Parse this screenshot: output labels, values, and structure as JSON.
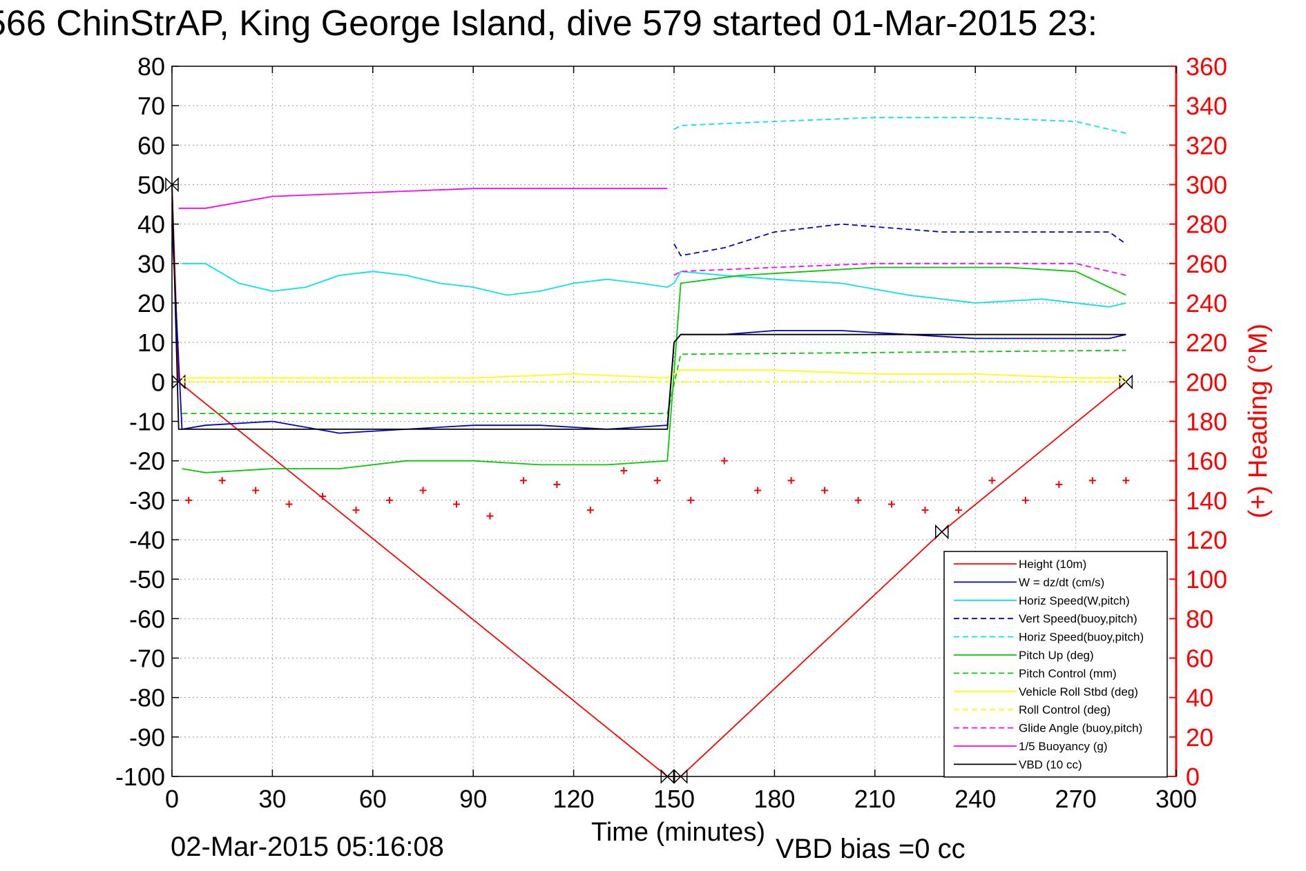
{
  "title": "566 ChinStrAP, King George Island, dive 579 started 01-Mar-2015 23:",
  "footer_time": "02-Mar-2015 05:16:08",
  "footer_vbd": "VBD bias =0 cc",
  "colors": {
    "red": "#ff0000",
    "blue": "#0000cc",
    "cyan": "#00e5ee",
    "green": "#00cc00",
    "yellow": "#ffff00",
    "magenta": "#ff00ff",
    "black": "#000000"
  },
  "chart_data": {
    "type": "line",
    "xlabel": "Time (minutes)",
    "ylabel": "",
    "y2label": "(+) Heading (°M)",
    "xlim": [
      0,
      300
    ],
    "ylim": [
      -100,
      80
    ],
    "y2lim": [
      0,
      360
    ],
    "xticks": [
      "0",
      "30",
      "60",
      "90",
      "120",
      "150",
      "180",
      "210",
      "240",
      "270",
      "300"
    ],
    "yticks": [
      "80",
      "70",
      "60",
      "50",
      "40",
      "30",
      "20",
      "10",
      "0",
      "-10",
      "-20",
      "-30",
      "-40",
      "-50",
      "-60",
      "-70",
      "-80",
      "-90",
      "-100"
    ],
    "y2ticks": [
      "360",
      "340",
      "320",
      "300",
      "280",
      "260",
      "240",
      "220",
      "200",
      "180",
      "160",
      "140",
      "120",
      "100",
      "80",
      "60",
      "40",
      "20",
      "0"
    ],
    "grid": true,
    "legend_position": "bottom-right",
    "legend": [
      {
        "label": "Height (10m)",
        "color": "#ff0000",
        "dash": false
      },
      {
        "label": "W = dz/dt (cm/s)",
        "color": "#0000cc",
        "dash": false
      },
      {
        "label": "Horiz Speed(W,pitch)",
        "color": "#00e5ee",
        "dash": false
      },
      {
        "label": "Vert Speed(buoy,pitch)",
        "color": "#0000cc",
        "dash": true
      },
      {
        "label": "Horiz Speed(buoy,pitch)",
        "color": "#00e5ee",
        "dash": true
      },
      {
        "label": "Pitch Up (deg)",
        "color": "#00cc00",
        "dash": false
      },
      {
        "label": "Pitch Control (mm)",
        "color": "#00cc00",
        "dash": true
      },
      {
        "label": "Vehicle Roll Stbd (deg)",
        "color": "#ffff00",
        "dash": false
      },
      {
        "label": "Roll Control (deg)",
        "color": "#ffff00",
        "dash": true
      },
      {
        "label": "Glide Angle (buoy,pitch)",
        "color": "#ff00ff",
        "dash": true
      },
      {
        "label": "1/5 Buoyancy (g)",
        "color": "#ff00ff",
        "dash": false
      },
      {
        "label": "VBD (10 cc)",
        "color": "#000000",
        "dash": false
      }
    ],
    "series": [
      {
        "name": "Height (10m)",
        "x": [
          0,
          2,
          148,
          152,
          230,
          285
        ],
        "y": [
          50,
          0,
          -100,
          -100,
          -38,
          0
        ]
      },
      {
        "name": "W = dz/dt (cm/s)",
        "x": [
          0,
          3,
          10,
          30,
          50,
          70,
          90,
          110,
          130,
          148,
          150,
          152,
          165,
          180,
          200,
          220,
          240,
          260,
          280,
          285
        ],
        "y": [
          40,
          -12,
          -11,
          -10,
          -13,
          -12,
          -11,
          -11,
          -12,
          -11,
          10,
          12,
          12,
          13,
          13,
          12,
          11,
          11,
          11,
          12
        ]
      },
      {
        "name": "Horiz Speed(W,pitch)",
        "x": [
          3,
          10,
          20,
          30,
          40,
          50,
          60,
          70,
          80,
          90,
          100,
          110,
          120,
          130,
          140,
          148,
          150,
          152,
          165,
          180,
          200,
          220,
          240,
          260,
          280,
          285
        ],
        "y": [
          30,
          30,
          25,
          23,
          24,
          27,
          28,
          27,
          25,
          24,
          22,
          23,
          25,
          26,
          25,
          24,
          25,
          28,
          27,
          26,
          25,
          22,
          20,
          21,
          19,
          20
        ]
      },
      {
        "name": "Vert Speed(buoy,pitch)",
        "x": [
          150,
          152,
          165,
          180,
          200,
          215,
          230,
          250,
          265,
          280,
          285
        ],
        "y": [
          35,
          32,
          34,
          38,
          40,
          39,
          38,
          38,
          38,
          38,
          35
        ]
      },
      {
        "name": "Horiz Speed(buoy,pitch)",
        "x": [
          150,
          152,
          180,
          210,
          240,
          270,
          285
        ],
        "y": [
          64,
          65,
          66,
          67,
          67,
          66,
          63
        ]
      },
      {
        "name": "Pitch Up (deg)",
        "x": [
          3,
          10,
          30,
          50,
          70,
          90,
          110,
          130,
          148,
          152,
          170,
          190,
          210,
          230,
          250,
          270,
          285
        ],
        "y": [
          -22,
          -23,
          -22,
          -22,
          -20,
          -20,
          -21,
          -21,
          -20,
          25,
          27,
          28,
          29,
          29,
          29,
          28,
          22
        ]
      },
      {
        "name": "Pitch Control (mm)",
        "x": [
          3,
          148,
          152,
          285
        ],
        "y": [
          -8,
          -8,
          7,
          8
        ]
      },
      {
        "name": "Vehicle Roll Stbd (deg)",
        "x": [
          3,
          30,
          60,
          90,
          120,
          148,
          152,
          180,
          210,
          240,
          270,
          285
        ],
        "y": [
          1,
          1,
          1,
          1,
          2,
          1,
          3,
          3,
          2,
          2,
          1,
          1
        ]
      },
      {
        "name": "Roll Control (deg)",
        "x": [
          0,
          285
        ],
        "y": [
          0,
          0
        ]
      },
      {
        "name": "Glide Angle (buoy,pitch)",
        "x": [
          150,
          152,
          180,
          210,
          240,
          270,
          285
        ],
        "y": [
          27,
          28,
          29,
          30,
          30,
          30,
          27
        ]
      },
      {
        "name": "1/5 Buoyancy (g)",
        "x": [
          2,
          10,
          30,
          60,
          90,
          120,
          148
        ],
        "y": [
          44,
          44,
          47,
          48,
          49,
          49,
          49
        ]
      },
      {
        "name": "VBD (10 cc)",
        "x": [
          0,
          2,
          148,
          150,
          152,
          285
        ],
        "y": [
          50,
          -12,
          -12,
          10,
          12,
          12
        ]
      },
      {
        "name": "Heading",
        "axis": "right",
        "x": [
          5,
          15,
          25,
          35,
          45,
          55,
          65,
          75,
          85,
          95,
          105,
          115,
          125,
          135,
          145,
          155,
          165,
          175,
          185,
          195,
          205,
          215,
          225,
          235,
          245,
          255,
          265,
          275,
          285
        ],
        "y": [
          140,
          150,
          145,
          138,
          142,
          135,
          140,
          145,
          138,
          132,
          150,
          148,
          135,
          155,
          150,
          140,
          160,
          145,
          150,
          145,
          140,
          138,
          135,
          135,
          150,
          140,
          148,
          150,
          150
        ]
      }
    ]
  }
}
